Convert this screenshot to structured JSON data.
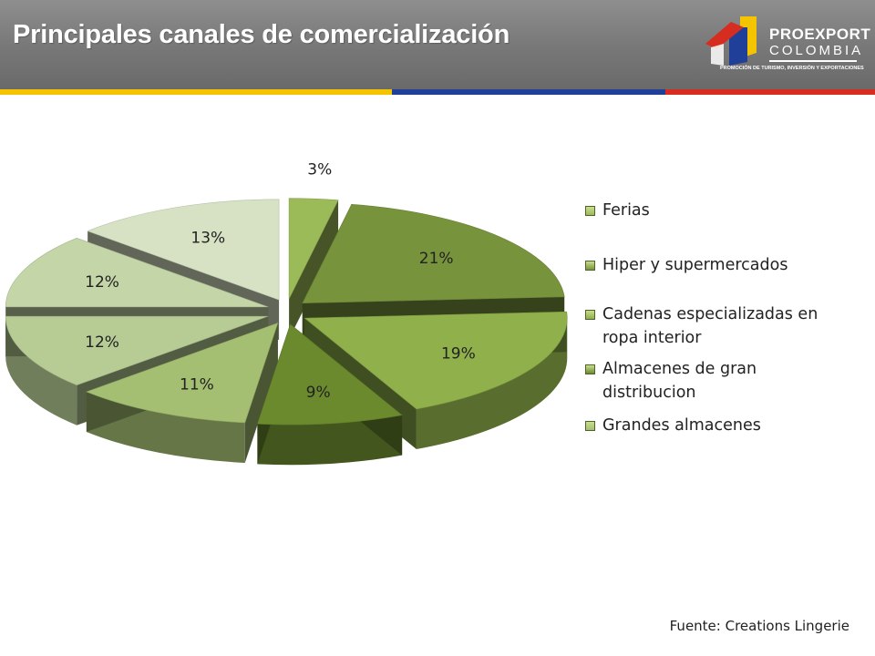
{
  "slide": {
    "title": "Principales canales de comercialización",
    "source": "Fuente: Creations Lingerie"
  },
  "logo": {
    "name_line1": "PROEXPORT",
    "name_line2": "COLOMBIA",
    "tagline": "PROMOCIÓN DE TURISMO, INVERSIÓN Y EXPORTACIONES",
    "colors": [
      "#f5c400",
      "#1f3f99",
      "#d62d20"
    ]
  },
  "header": {
    "stripe_colors": [
      "#f5c400",
      "#1f3f99",
      "#d62d20"
    ]
  },
  "chart_data": {
    "type": "pie",
    "style": "3d-exploded",
    "values": [
      3,
      21,
      19,
      9,
      11,
      12,
      12,
      13
    ],
    "data_labels": [
      "3%",
      "21%",
      "19%",
      "9%",
      "11%",
      "12%",
      "12%",
      "13%"
    ],
    "slice_colors": [
      "#9bbb59",
      "#77933c",
      "#8fb04a",
      "#6b8a2e",
      "#a4bf72",
      "#b7cc94",
      "#c4d5a8",
      "#d7e2c4"
    ],
    "legend": {
      "position": "right",
      "entries": [
        "Ferias",
        "Hiper y supermercados",
        "Cadenas especializadas en ropa interior",
        "Almacenes de gran distribucion",
        "Grandes almacenes"
      ],
      "colors": [
        "#9bbb59",
        "#77933c",
        "#8fb04a",
        "#6b8a2e",
        "#a4bf72"
      ]
    }
  }
}
